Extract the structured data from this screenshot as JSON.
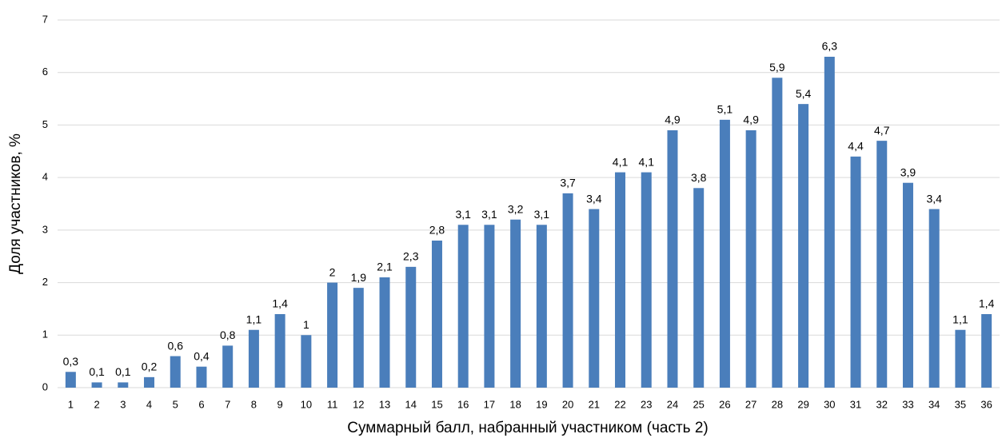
{
  "chart_data": {
    "type": "bar",
    "x_label": "Суммарный балл, набранный участником (часть 2)",
    "y_label": "Доля участников, %",
    "categories": [
      "1",
      "2",
      "3",
      "4",
      "5",
      "6",
      "7",
      "8",
      "9",
      "10",
      "11",
      "12",
      "13",
      "14",
      "15",
      "16",
      "17",
      "18",
      "19",
      "20",
      "21",
      "22",
      "23",
      "24",
      "25",
      "26",
      "27",
      "28",
      "29",
      "30",
      "31",
      "32",
      "33",
      "34",
      "35",
      "36"
    ],
    "values": [
      0.3,
      0.1,
      0.1,
      0.2,
      0.6,
      0.4,
      0.8,
      1.1,
      1.4,
      1,
      2,
      1.9,
      2.1,
      2.3,
      2.8,
      3.1,
      3.1,
      3.2,
      3.1,
      3.7,
      3.4,
      4.1,
      4.1,
      4.9,
      3.8,
      5.1,
      4.9,
      5.9,
      5.4,
      6.3,
      4.4,
      4.7,
      3.9,
      3.4,
      1.1,
      1.4
    ],
    "value_labels": [
      "0,3",
      "0,1",
      "0,1",
      "0,2",
      "0,6",
      "0,4",
      "0,8",
      "1,1",
      "1,4",
      "1",
      "2",
      "1,9",
      "2,1",
      "2,3",
      "2,8",
      "3,1",
      "3,1",
      "3,2",
      "3,1",
      "3,7",
      "3,4",
      "4,1",
      "4,1",
      "4,9",
      "3,8",
      "5,1",
      "4,9",
      "5,9",
      "5,4",
      "6,3",
      "4,4",
      "4,7",
      "3,9",
      "3,4",
      "1,1",
      "1,4"
    ],
    "color": "#4a7ebb",
    "ylim": [
      0,
      7
    ],
    "yticks": [
      0,
      1,
      2,
      3,
      4,
      5,
      6,
      7
    ],
    "grid": true
  }
}
